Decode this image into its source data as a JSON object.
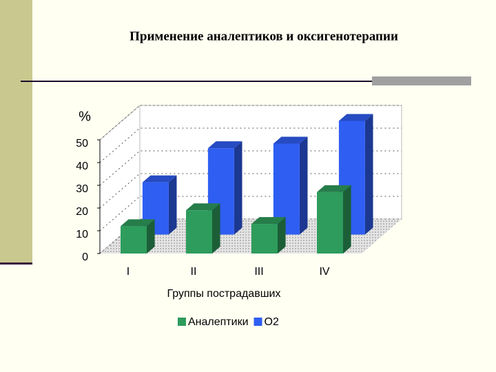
{
  "chart_data": {
    "type": "bar3d",
    "title": "Применение аналептиков и оксигенотерапии",
    "y_label": "%",
    "x_label": "Группы пострадавших",
    "categories": [
      "I",
      "II",
      "III",
      "IV"
    ],
    "series": [
      {
        "name": "Аналептики",
        "color": "#2e9c5c",
        "values": [
          12,
          19,
          13,
          27
        ]
      },
      {
        "name": "O2",
        "color": "#2f5ef2",
        "values": [
          23,
          38,
          40,
          50
        ]
      }
    ],
    "ylim": [
      0,
      50
    ],
    "yticks": [
      0,
      10,
      20,
      30,
      40,
      50
    ],
    "grid": true
  }
}
